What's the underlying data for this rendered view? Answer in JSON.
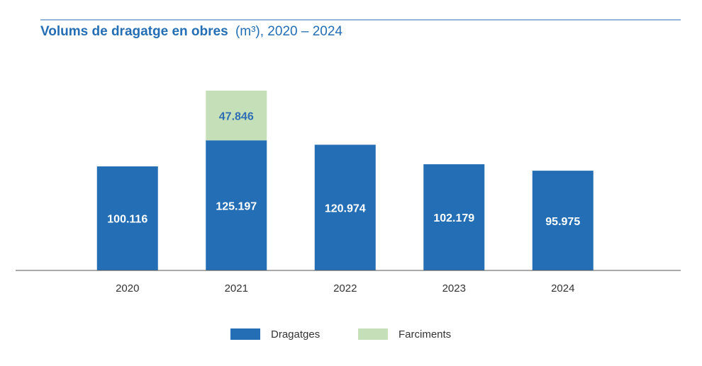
{
  "chart_data": {
    "type": "bar",
    "stacked": true,
    "title": "Volums de dragatge en obres",
    "subtitle": "(m³), 2020 – 2024",
    "categories": [
      "2020",
      "2021",
      "2022",
      "2023",
      "2024"
    ],
    "series": [
      {
        "name": "Dragatges",
        "color": "#236eb4",
        "values": [
          100116,
          125197,
          120974,
          102179,
          95975
        ],
        "value_labels": [
          "100.116",
          "125.197",
          "120.974",
          "102.179",
          "95.975"
        ],
        "label_color": "#ffffff"
      },
      {
        "name": "Farciments",
        "color": "#c5dfb8",
        "values": [
          null,
          47846,
          null,
          null,
          null
        ],
        "value_labels": [
          null,
          "47.846",
          null,
          null,
          null
        ],
        "label_color": "#2f6db5"
      }
    ]
  }
}
